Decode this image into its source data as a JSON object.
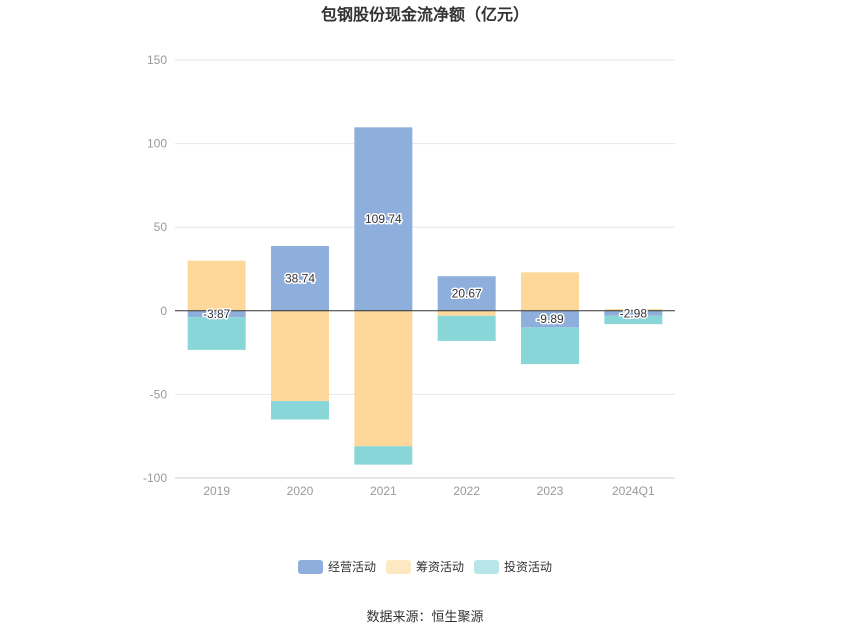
{
  "chart_data": {
    "type": "bar",
    "stacked": true,
    "title": "包钢股份现金流净额（亿元）",
    "categories": [
      "2019",
      "2020",
      "2021",
      "2022",
      "2023",
      "2024Q1"
    ],
    "series": [
      {
        "name": "经营活动",
        "color": "#8eaedb",
        "values": [
          -3.87,
          38.74,
          109.74,
          20.67,
          -9.89,
          -2.98
        ],
        "labels": [
          "-3.87",
          "38.74",
          "109.74",
          "20.67",
          "-9.89",
          "-2.98"
        ]
      },
      {
        "name": "筹资活动",
        "color": "#fed89a",
        "values": [
          30.0,
          -54.0,
          -81.0,
          -3.0,
          23.0,
          1.0
        ]
      },
      {
        "name": "投资活动",
        "color": "#89d6d9",
        "values": [
          -19.5,
          -11.0,
          -11.0,
          -15.0,
          -22.0,
          -5.0
        ]
      }
    ],
    "ylim": [
      -100,
      150
    ],
    "yticks": [
      "-100",
      "-50",
      "0",
      "50",
      "100",
      "150"
    ],
    "legend_position": "bottom",
    "grid": true
  },
  "source": "数据来源：恒生聚源"
}
